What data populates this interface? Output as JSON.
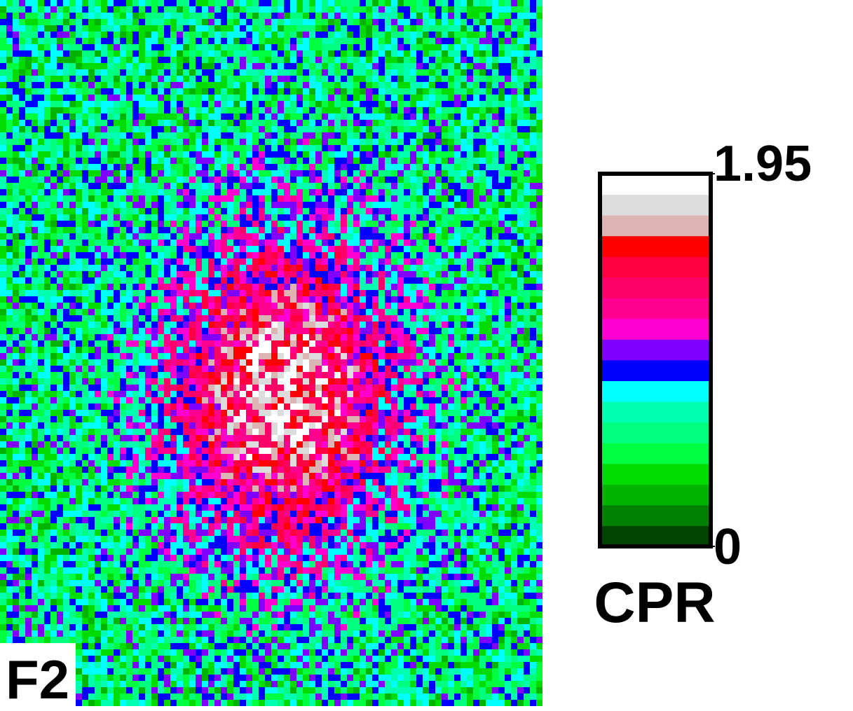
{
  "chart_data": {
    "type": "heatmap",
    "panel_label": "F2",
    "colorbar_label": "CPR",
    "zlim": [
      0,
      1.95
    ],
    "zticks": [
      0,
      1.95
    ],
    "colors": [
      "#004400",
      "#008000",
      "#00b400",
      "#00dc00",
      "#00ff40",
      "#00ff80",
      "#00ffb0",
      "#00ffff",
      "#0000ff",
      "#8000ff",
      "#ff00d0",
      "#ff0090",
      "#ff0068",
      "#ff0040",
      "#ff0000",
      "#dcb4b4",
      "#dcdcdc",
      "#ffffff"
    ]
  }
}
